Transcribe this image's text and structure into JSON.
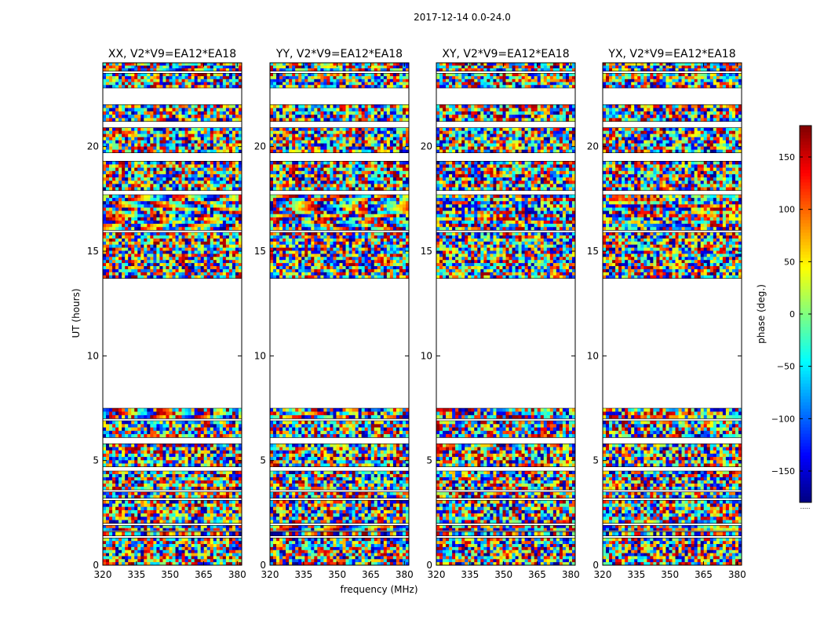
{
  "suptitle": "2017-12-14 0.0-24.0",
  "chart_data": {
    "type": "heatmap",
    "xlabel": "frequency (MHz)",
    "ylabel": "UT (hours)",
    "xlim": [
      320,
      382
    ],
    "ylim": [
      0,
      24
    ],
    "xticks": [
      "320",
      "335",
      "350",
      "365",
      "380"
    ],
    "yticks": [
      "0",
      "5",
      "10",
      "15",
      "20"
    ],
    "colorbar": {
      "label": "phase (deg.)",
      "range": [
        -180,
        180
      ],
      "ticks": [
        "150",
        "100",
        "50",
        "0",
        "−50",
        "−100",
        "−150"
      ],
      "colormap": "jet",
      "footnote": "....."
    },
    "panels": [
      {
        "title": "XX, V2*V9=EA12*EA18",
        "slope": -3.2,
        "noise": 0.55
      },
      {
        "title": "YY, V2*V9=EA12*EA18",
        "slope": 2.8,
        "noise": 0.55
      },
      {
        "title": "XY, V2*V9=EA12*EA18",
        "slope": 0.8,
        "noise": 0.95
      },
      {
        "title": "YX, V2*V9=EA12*EA18",
        "slope": -0.6,
        "noise": 0.95
      }
    ],
    "data_blocks_ut": [
      [
        0.0,
        1.3,
        0.0
      ],
      [
        1.4,
        1.6,
        0.0
      ],
      [
        1.65,
        1.9,
        0.9
      ],
      [
        2.0,
        3.1,
        0.1
      ],
      [
        3.2,
        3.5,
        0.0
      ],
      [
        3.6,
        4.5,
        0.2
      ],
      [
        4.7,
        5.8,
        0.0
      ],
      [
        6.1,
        6.9,
        0.0
      ],
      [
        7.0,
        7.5,
        0.9
      ],
      [
        13.7,
        15.9,
        0.1
      ],
      [
        16.0,
        17.7,
        1.0
      ],
      [
        17.9,
        19.3,
        0.0
      ],
      [
        19.7,
        20.9,
        0.0
      ],
      [
        21.2,
        22.0,
        0.2
      ],
      [
        22.8,
        23.5,
        0.4
      ],
      [
        23.6,
        24.0,
        0.7
      ]
    ],
    "colors": {
      "axis": "#000000",
      "background": "#ffffff"
    }
  }
}
